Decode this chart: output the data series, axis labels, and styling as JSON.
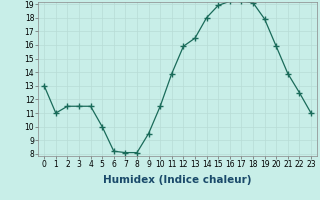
{
  "x": [
    0,
    1,
    2,
    3,
    4,
    5,
    6,
    7,
    8,
    9,
    10,
    11,
    12,
    13,
    14,
    15,
    16,
    17,
    18,
    19,
    20,
    21,
    22,
    23
  ],
  "y": [
    13,
    11,
    11.5,
    11.5,
    11.5,
    10,
    8.2,
    8.1,
    8.1,
    9.5,
    11.5,
    13.9,
    15.9,
    16.5,
    18,
    18.9,
    19.2,
    19.2,
    19.1,
    17.9,
    15.9,
    13.9,
    12.5,
    11
  ],
  "line_color": "#1a6b5a",
  "marker_color": "#1a6b5a",
  "bg_color": "#c8eee8",
  "grid_color": "#b8dcd6",
  "xlabel": "Humidex (Indice chaleur)",
  "ylim": [
    8,
    19
  ],
  "xlim": [
    -0.5,
    23.5
  ],
  "yticks": [
    8,
    9,
    10,
    11,
    12,
    13,
    14,
    15,
    16,
    17,
    18,
    19
  ],
  "xticks": [
    0,
    1,
    2,
    3,
    4,
    5,
    6,
    7,
    8,
    9,
    10,
    11,
    12,
    13,
    14,
    15,
    16,
    17,
    18,
    19,
    20,
    21,
    22,
    23
  ],
  "tick_label_fontsize": 5.5,
  "xlabel_fontsize": 7.5
}
